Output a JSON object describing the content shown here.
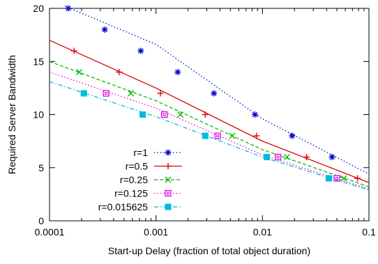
{
  "chart_data": {
    "type": "line",
    "title": "",
    "xlabel": "Start-up Delay (fraction of total object duration)",
    "ylabel": "Required Server Bandwidth",
    "xscale": "log",
    "xlim": [
      0.0001,
      0.1
    ],
    "ylim": [
      0,
      20
    ],
    "xticks": [
      0.0001,
      0.001,
      0.01,
      0.1
    ],
    "xtick_labels": [
      "0.0001",
      "0.001",
      "0.01",
      "0.1"
    ],
    "yticks": [
      0,
      5,
      10,
      15,
      20
    ],
    "ytick_labels": [
      "0",
      "5",
      "10",
      "15",
      "20"
    ],
    "grid": false,
    "legend_position": "bottom-left",
    "series": [
      {
        "name": "r=1",
        "color": "#0000cc",
        "dash": "dotted",
        "marker": "asterisk",
        "line": [
          [
            0.00014,
            20.2
          ],
          [
            0.001,
            16.6
          ],
          [
            0.01,
            9.6
          ],
          [
            0.1,
            4.4
          ]
        ],
        "points": [
          [
            0.00015,
            20
          ],
          [
            0.00033,
            18
          ],
          [
            0.00072,
            16
          ],
          [
            0.0016,
            14
          ],
          [
            0.0035,
            12
          ],
          [
            0.0085,
            10
          ],
          [
            0.019,
            8
          ],
          [
            0.045,
            6
          ]
        ]
      },
      {
        "name": "r=0.5",
        "color": "#dd0000",
        "dash": "solid",
        "marker": "plus",
        "line": [
          [
            0.0001,
            17
          ],
          [
            0.001,
            12.5
          ],
          [
            0.01,
            7.5
          ],
          [
            0.1,
            3.6
          ]
        ],
        "points": [
          [
            0.00017,
            16
          ],
          [
            0.00045,
            14
          ],
          [
            0.0011,
            12
          ],
          [
            0.0029,
            10
          ],
          [
            0.0088,
            8
          ],
          [
            0.026,
            6
          ],
          [
            0.078,
            4
          ]
        ]
      },
      {
        "name": "r=0.25",
        "color": "#00bb00",
        "dash": "dashed",
        "marker": "cross",
        "line": [
          [
            0.0001,
            15
          ],
          [
            0.001,
            11.3
          ],
          [
            0.01,
            6.7
          ],
          [
            0.1,
            3.2
          ]
        ],
        "points": [
          [
            0.00019,
            14
          ],
          [
            0.00058,
            12
          ],
          [
            0.0017,
            10
          ],
          [
            0.0052,
            8
          ],
          [
            0.017,
            6
          ],
          [
            0.058,
            4
          ]
        ]
      },
      {
        "name": "r=0.125",
        "color": "#dd00dd",
        "dash": "dotted",
        "marker": "square",
        "line": [
          [
            0.0001,
            14
          ],
          [
            0.001,
            10.6
          ],
          [
            0.01,
            6.2
          ],
          [
            0.1,
            3.0
          ]
        ],
        "points": [
          [
            0.00034,
            12
          ],
          [
            0.0012,
            10
          ],
          [
            0.0038,
            8
          ],
          [
            0.014,
            6
          ],
          [
            0.05,
            4
          ]
        ]
      },
      {
        "name": "r=0.015625",
        "color": "#00bbdd",
        "dash": "dashdot",
        "marker": "filled-square",
        "line": [
          [
            0.0001,
            13.1
          ],
          [
            0.001,
            9.8
          ],
          [
            0.01,
            6.0
          ],
          [
            0.1,
            2.9
          ]
        ],
        "points": [
          [
            0.00021,
            12
          ],
          [
            0.00075,
            10
          ],
          [
            0.0029,
            8
          ],
          [
            0.011,
            6
          ],
          [
            0.042,
            4
          ]
        ]
      }
    ]
  }
}
